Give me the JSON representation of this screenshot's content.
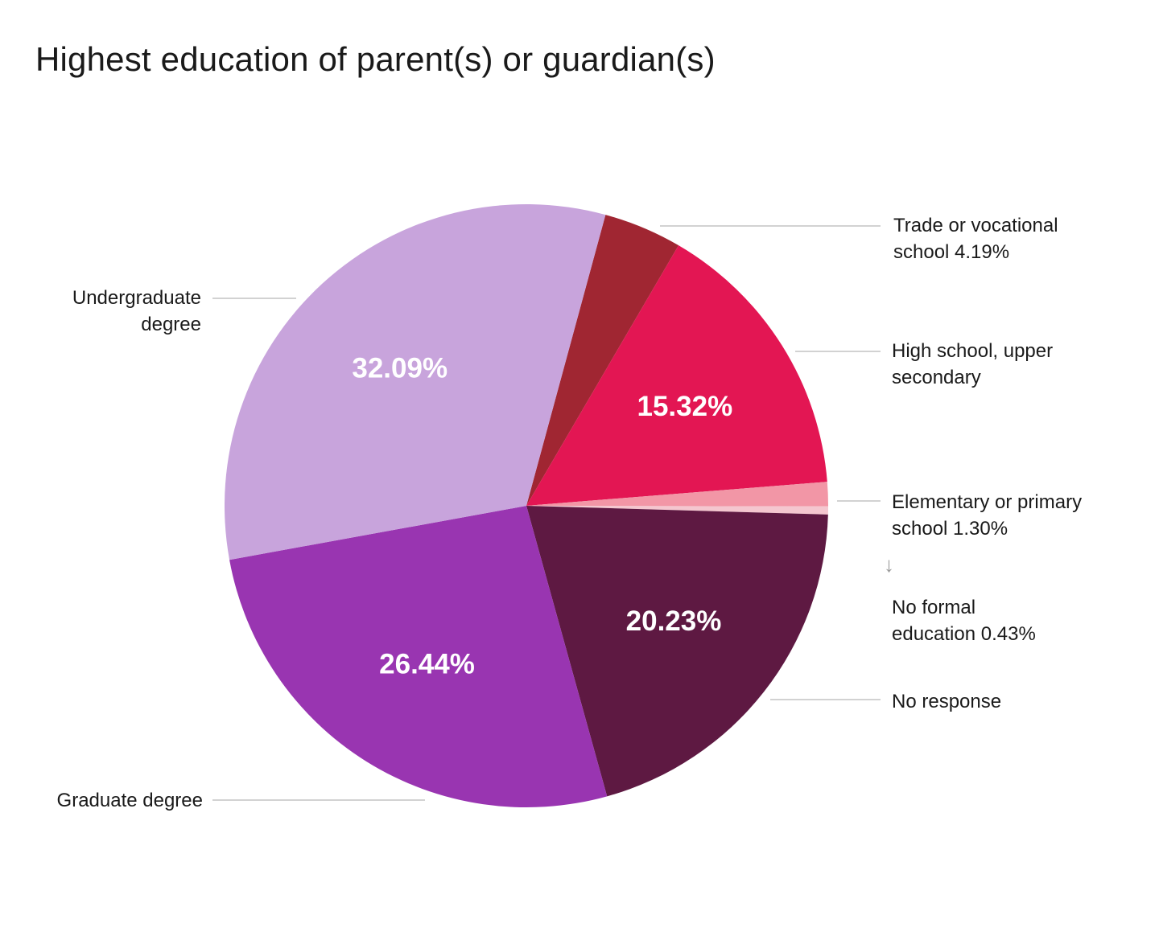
{
  "title": "Highest education of parent(s) or guardian(s)",
  "chart_data": {
    "type": "pie",
    "title": "Highest education of parent(s) or guardian(s)",
    "slices": [
      {
        "label": "Trade or vocational school",
        "value": 4.19,
        "display": "Trade or vocational\nschool 4.19%",
        "color": "#a02632",
        "inside_label": ""
      },
      {
        "label": "High school, upper secondary",
        "value": 15.32,
        "display": "High school, upper\nsecondary",
        "color": "#e31653",
        "inside_label": "15.32%"
      },
      {
        "label": "Elementary or primary school",
        "value": 1.3,
        "display": "Elementary or primary\nschool 1.30%",
        "color": "#f296a6",
        "inside_label": ""
      },
      {
        "label": "No formal education",
        "value": 0.43,
        "display": "No formal\neducation 0.43%",
        "color": "#f4c6cf",
        "inside_label": ""
      },
      {
        "label": "No response",
        "value": 20.23,
        "display": "No response",
        "color": "#5e1942",
        "inside_label": "20.23%"
      },
      {
        "label": "Graduate degree",
        "value": 26.44,
        "display": "Graduate degree",
        "color": "#9935b1",
        "inside_label": "26.44%"
      },
      {
        "label": "Undergraduate degree",
        "value": 32.09,
        "display": "Undergraduate\ndegree",
        "color": "#c8a4dc",
        "inside_label": "32.09%"
      }
    ],
    "labels": {
      "trade": [
        "Trade or vocational",
        "school 4.19%"
      ],
      "high_school": [
        "High school, upper",
        "secondary"
      ],
      "elementary": [
        "Elementary or primary",
        "school 1.30%"
      ],
      "no_formal": [
        "No formal",
        "education 0.43%"
      ],
      "no_response": [
        "No response"
      ],
      "graduate": [
        "Graduate degree"
      ],
      "undergraduate": [
        "Undergraduate",
        "degree"
      ]
    },
    "arrow_glyph": "↓",
    "legend": "none"
  }
}
